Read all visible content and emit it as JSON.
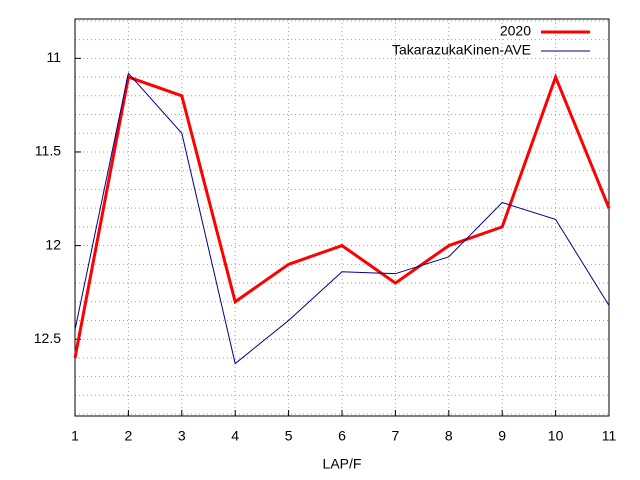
{
  "chart_data": {
    "type": "line",
    "x_label": "LAP/F",
    "x": [
      1,
      2,
      3,
      4,
      5,
      6,
      7,
      8,
      9,
      10,
      11
    ],
    "series": [
      {
        "name": "2020",
        "color": "#ff0000",
        "width": 3,
        "values": [
          12.6,
          11.1,
          11.2,
          12.3,
          12.1,
          12.0,
          12.2,
          12.0,
          11.9,
          11.1,
          11.8
        ]
      },
      {
        "name": "TakarazukaKinen-AVE",
        "color": "#00008b",
        "width": 1,
        "values": [
          12.45,
          11.08,
          11.4,
          12.63,
          12.4,
          12.14,
          12.15,
          12.06,
          11.77,
          11.86,
          12.32
        ]
      }
    ],
    "xlim": [
      1,
      11
    ],
    "xticks": [
      1,
      2,
      3,
      4,
      5,
      6,
      7,
      8,
      9,
      10,
      11
    ],
    "ylim": [
      12.91,
      10.79
    ],
    "yticks": [
      11,
      11.5,
      12,
      12.5
    ],
    "y_minor_ticks": [
      10.8,
      10.9,
      11.1,
      11.2,
      11.3,
      11.4,
      11.6,
      11.7,
      11.8,
      11.9,
      12.1,
      12.2,
      12.3,
      12.4,
      12.6,
      12.7,
      12.8,
      12.9
    ],
    "grid": true,
    "legend": "top-right"
  }
}
